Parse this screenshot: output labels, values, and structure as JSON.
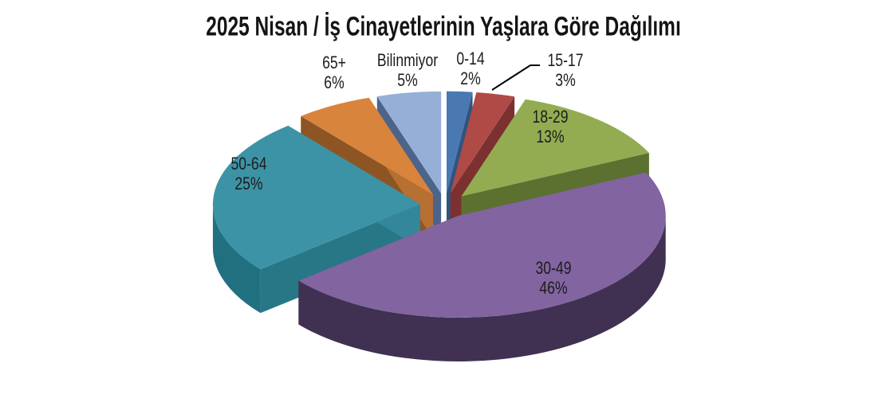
{
  "chart_data": {
    "type": "pie",
    "style": "3d-exploded",
    "title": "2025 Nisan / İş Cinayetlerinin Yaşlara Göre Dağılımı",
    "unit": "%",
    "legend": "none",
    "background": "#FFFFFF",
    "callout_slice": "15-17",
    "slices": [
      {
        "label": "0-14",
        "value": 2,
        "pct_label": "2%",
        "color": "#4A79B2",
        "dark": "#2A4B74"
      },
      {
        "label": "15-17",
        "value": 3,
        "pct_label": "3%",
        "color": "#AF4A47",
        "dark": "#6E2B29"
      },
      {
        "label": "18-29",
        "value": 13,
        "pct_label": "13%",
        "color": "#93AC52",
        "dark": "#4E6228"
      },
      {
        "label": "30-49",
        "value": 46,
        "pct_label": "46%",
        "color": "#8164A0",
        "dark": "#40315!",
        "dark_fix": "#403152"
      },
      {
        "label": "50-64",
        "value": 25,
        "pct_label": "25%",
        "color": "#3D93A6",
        "dark": "#21707F"
      },
      {
        "label": "65+",
        "value": 6,
        "pct_label": "6%",
        "color": "#D8843C",
        "dark": "#7A491E"
      },
      {
        "label": "Bilinmiyor",
        "value": 5,
        "pct_label": "5%",
        "color": "#96AFD6",
        "dark": "#3B5177"
      }
    ]
  }
}
